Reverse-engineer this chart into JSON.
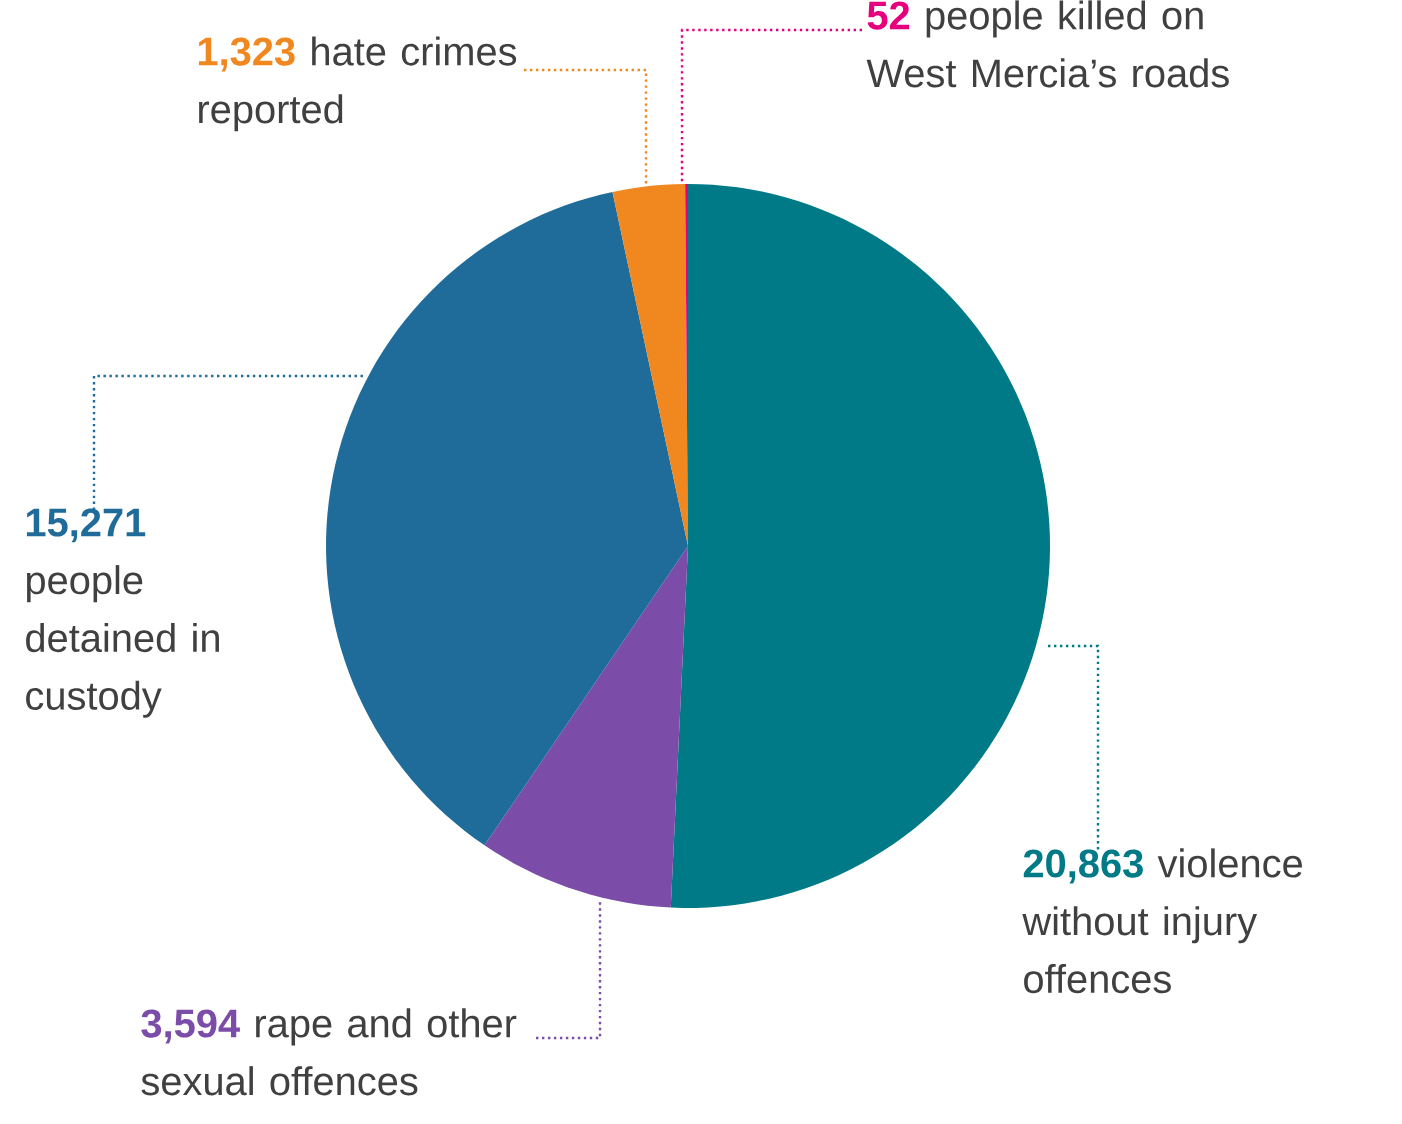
{
  "chart_data": {
    "type": "pie",
    "categories": [
      "violence without injury offences",
      "rape and other sexual offences",
      "people detained in custody",
      "hate crimes reported",
      "people killed on West Mercia’s roads"
    ],
    "values": [
      20863,
      3594,
      15271,
      1323,
      52
    ],
    "value_labels": [
      "20,863",
      "3,594",
      "15,271",
      "1,323",
      "52"
    ],
    "colors": [
      "#007a87",
      "#7b4ca8",
      "#1f6b99",
      "#f0871f",
      "#e6007e"
    ]
  }
}
